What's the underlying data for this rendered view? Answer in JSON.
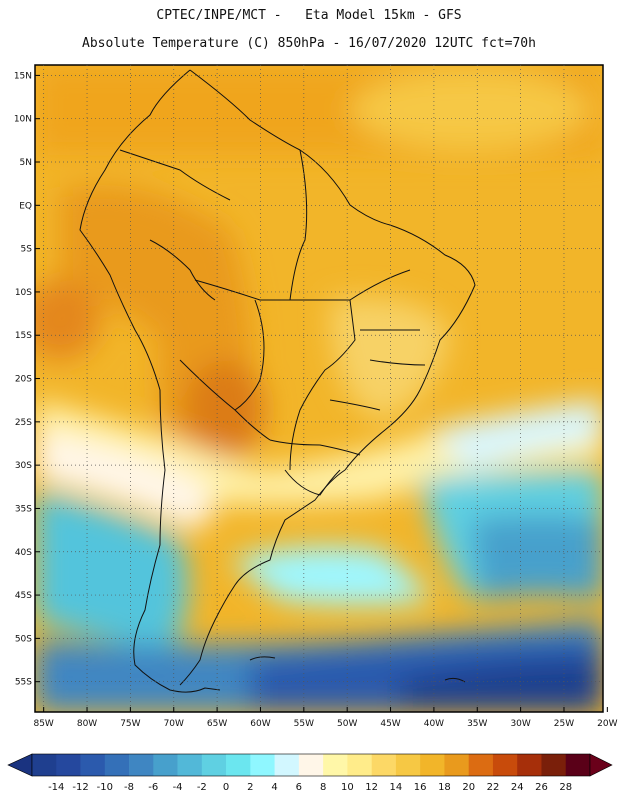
{
  "header": {
    "line1": "CPTEC/INPE/MCT -   Eta Model 15km - GFS",
    "line2": "Absolute Temperature (C) 850hPa - 16/07/2020 12UTC fct=70h"
  },
  "map": {
    "lat_labels": [
      "15N",
      "10N",
      "5N",
      "EQ",
      "5S",
      "10S",
      "15S",
      "20S",
      "25S",
      "30S",
      "35S",
      "40S",
      "45S",
      "50S",
      "55S"
    ],
    "lon_labels": [
      "85W",
      "80W",
      "75W",
      "70W",
      "65W",
      "60W",
      "55W",
      "50W",
      "45W",
      "40W",
      "35W",
      "30W",
      "25W",
      "20W"
    ],
    "lon_range": [
      -85,
      -20
    ],
    "lat_range": [
      15,
      -55
    ]
  },
  "colorbar": {
    "levels": [
      "-14",
      "-12",
      "-10",
      "-8",
      "-6",
      "-4",
      "-2",
      "0",
      "2",
      "4",
      "6",
      "8",
      "10",
      "12",
      "14",
      "16",
      "18",
      "20",
      "22",
      "24",
      "26",
      "28"
    ],
    "colors": [
      "#1f3f8f",
      "#25489e",
      "#2b5aad",
      "#3470b8",
      "#3f86c2",
      "#47a0cc",
      "#52b8d8",
      "#5fd0e2",
      "#6be6ef",
      "#8ff7ff",
      "#d2f7ff",
      "#fff6e8",
      "#fff7a8",
      "#ffec8a",
      "#fcd866",
      "#f6c844",
      "#f2b529",
      "#e99a1d",
      "#dc6c12",
      "#c84b0b",
      "#a62f0a",
      "#7a1f0a",
      "#5a0018"
    ],
    "under_color": "#1a3380",
    "over_color": "#6a001a"
  }
}
